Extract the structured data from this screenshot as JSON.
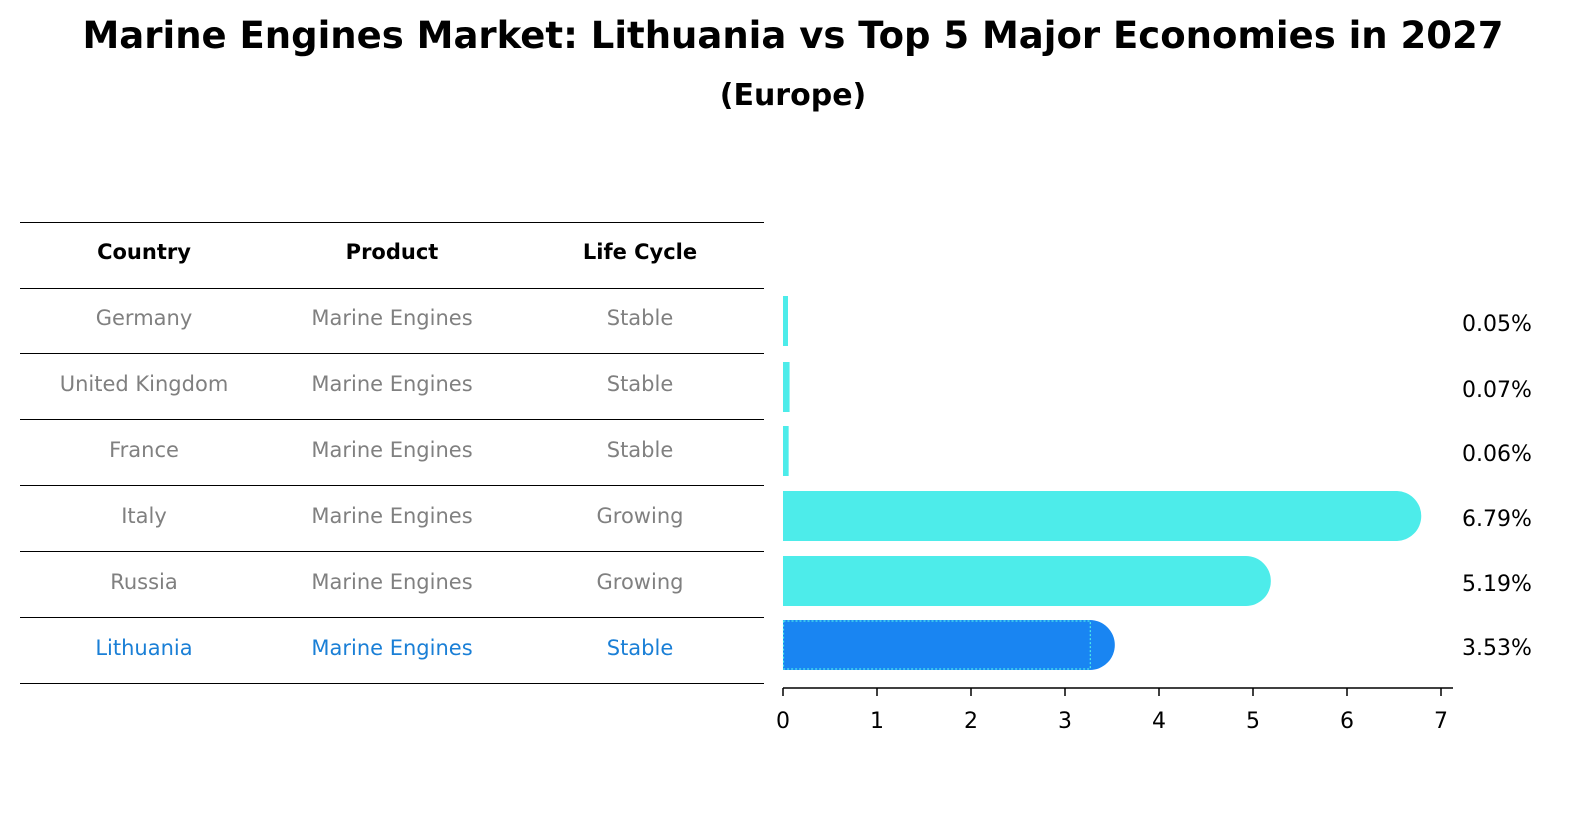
{
  "title": "Marine Engines Market: Lithuania vs Top 5 Major Economies in 2027",
  "subtitle": "(Europe)",
  "table": {
    "headers": [
      "Country",
      "Product",
      "Life Cycle"
    ],
    "rows": [
      {
        "country": "Germany",
        "product": "Marine Engines",
        "life_cycle": "Stable"
      },
      {
        "country": "United Kingdom",
        "product": "Marine Engines",
        "life_cycle": "Stable"
      },
      {
        "country": "France",
        "product": "Marine Engines",
        "life_cycle": "Stable"
      },
      {
        "country": "Italy",
        "product": "Marine Engines",
        "life_cycle": "Growing"
      },
      {
        "country": "Russia",
        "product": "Marine Engines",
        "life_cycle": "Growing"
      },
      {
        "country": "Lithuania",
        "product": "Marine Engines",
        "life_cycle": "Stable"
      }
    ],
    "highlight_country": "Lithuania"
  },
  "colors": {
    "bar": "#4DECEA",
    "highlight_bar": "#1985F2",
    "highlight_text": "#1A7FD6",
    "muted_text": "#808080"
  },
  "chart_data": {
    "type": "bar",
    "orientation": "horizontal",
    "categories": [
      "Germany",
      "United Kingdom",
      "France",
      "Italy",
      "Russia",
      "Lithuania"
    ],
    "values": [
      0.05,
      0.07,
      0.06,
      6.79,
      5.19,
      3.53
    ],
    "value_labels": [
      "0.05%",
      "0.07%",
      "0.06%",
      "6.79%",
      "5.19%",
      "3.53%"
    ],
    "xlim": [
      0,
      7
    ],
    "xticks": [
      0,
      1,
      2,
      3,
      4,
      5,
      6,
      7
    ],
    "grid": false,
    "highlight": "Lithuania"
  }
}
